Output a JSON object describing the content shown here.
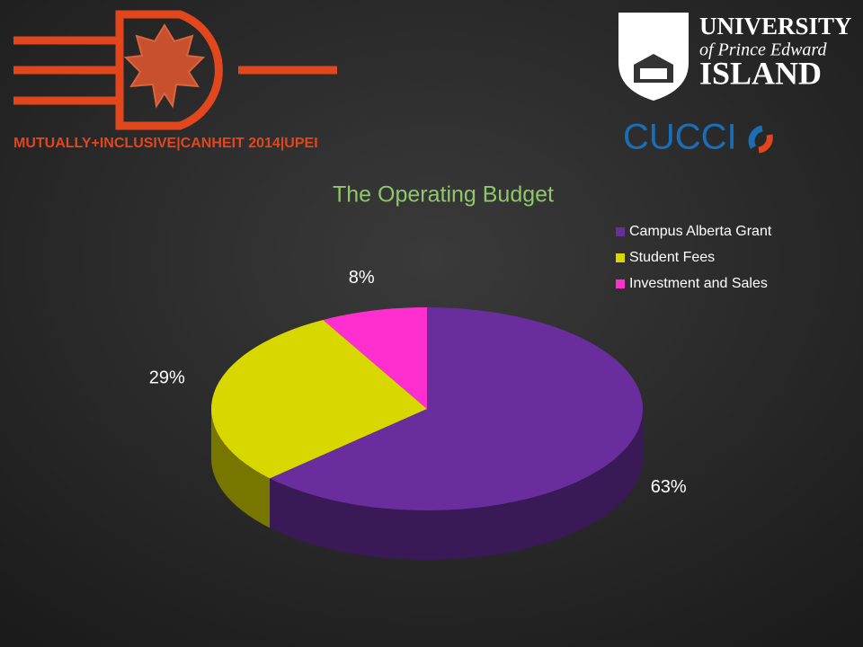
{
  "header": {
    "conference": "MUTUALLY+INCLUSIVE|CANHEIT 2014|UPEI",
    "university_line1": "UNIVERSITY",
    "university_line2": "of Prince Edward",
    "university_line3": "ISLAND",
    "partner": "CUCCI"
  },
  "chart_data": {
    "type": "pie",
    "title": "The Operating Budget",
    "categories": [
      "Campus Alberta Grant",
      "Student Fees",
      "Investment and Sales"
    ],
    "values": [
      63,
      29,
      8
    ],
    "value_labels": [
      "63%",
      "29%",
      "8%"
    ],
    "colors": [
      "#6a2d9e",
      "#d8d800",
      "#ff2fcf"
    ],
    "legend": "top-right"
  }
}
